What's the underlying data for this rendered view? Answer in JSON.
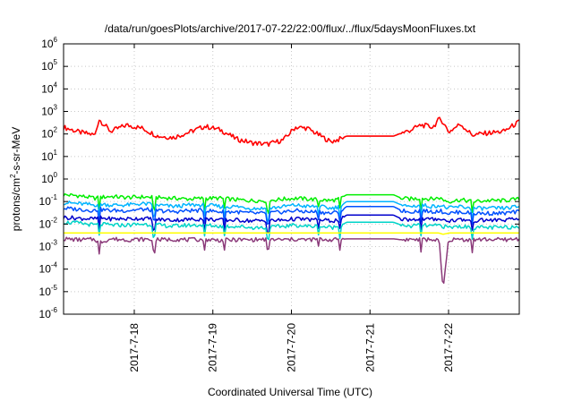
{
  "chart_data": {
    "type": "line",
    "title": "/data/run/goesPlots/archive/2017-07-22/22:00/flux/../flux/5daysMoonFluxes.txt",
    "xlabel": "Coordinated Universal Time (UTC)",
    "ylabel": {
      "prefix": "protons/cm",
      "sup": "2",
      "suffix": "-s-sr-MeV"
    },
    "yscale": "log",
    "ylim": [
      1e-06,
      1000000.0
    ],
    "xlim": [
      17.1,
      22.9
    ],
    "grid": true,
    "y_ticks": [
      {
        "value": 1e-06,
        "base": "10",
        "exp": "-6"
      },
      {
        "value": 1e-05,
        "base": "10",
        "exp": "-5"
      },
      {
        "value": 0.0001,
        "base": "10",
        "exp": "-4"
      },
      {
        "value": 0.001,
        "base": "10",
        "exp": "-3"
      },
      {
        "value": 0.01,
        "base": "10",
        "exp": "-2"
      },
      {
        "value": 0.1,
        "base": "10",
        "exp": "-1"
      },
      {
        "value": 1,
        "base": "10",
        "exp": "0"
      },
      {
        "value": 10,
        "base": "10",
        "exp": "1"
      },
      {
        "value": 100,
        "base": "10",
        "exp": "2"
      },
      {
        "value": 1000,
        "base": "10",
        "exp": "3"
      },
      {
        "value": 10000,
        "base": "10",
        "exp": "4"
      },
      {
        "value": 100000,
        "base": "10",
        "exp": "5"
      },
      {
        "value": 1000000,
        "base": "10",
        "exp": "6"
      }
    ],
    "x_ticks": [
      {
        "value": 18,
        "label": "2017-7-18"
      },
      {
        "value": 19,
        "label": "2017-7-19"
      },
      {
        "value": 20,
        "label": "2017-7-20"
      },
      {
        "value": 21,
        "label": "2017-7-21"
      },
      {
        "value": 22,
        "label": "2017-7-22"
      }
    ],
    "x": [
      17.1,
      17.3,
      17.5,
      17.55,
      17.7,
      17.9,
      18.1,
      18.3,
      18.5,
      18.7,
      18.9,
      19.1,
      19.3,
      19.5,
      19.7,
      19.9,
      20.05,
      20.2,
      20.35,
      20.5,
      20.62,
      20.7,
      20.9,
      21.1,
      21.3,
      21.4,
      21.5,
      21.65,
      21.8,
      21.88,
      21.93,
      22.0,
      22.15,
      22.3,
      22.5,
      22.7,
      22.9
    ],
    "series": [
      {
        "color": "#ff0000",
        "values": [
          200,
          120,
          90,
          450,
          130,
          250,
          180,
          80,
          70,
          120,
          220,
          150,
          60,
          40,
          35,
          55,
          200,
          180,
          90,
          45,
          60,
          80,
          80,
          80,
          80,
          110,
          140,
          250,
          200,
          450,
          350,
          120,
          280,
          90,
          110,
          130,
          350
        ]
      },
      {
        "color": "#00ee00",
        "values": [
          0.2,
          0.18,
          0.14,
          0.15,
          0.17,
          0.15,
          0.16,
          0.15,
          0.14,
          0.13,
          0.14,
          0.14,
          0.12,
          0.11,
          0.11,
          0.13,
          0.14,
          0.13,
          0.12,
          0.11,
          0.13,
          0.2,
          0.2,
          0.2,
          0.2,
          0.14,
          0.13,
          0.14,
          0.13,
          0.15,
          0.12,
          0.1,
          0.12,
          0.1,
          0.11,
          0.11,
          0.13
        ]
      },
      {
        "color": "#00b4ff",
        "values": [
          0.09,
          0.08,
          0.07,
          0.08,
          0.07,
          0.07,
          0.08,
          0.07,
          0.06,
          0.07,
          0.07,
          0.06,
          0.06,
          0.05,
          0.05,
          0.06,
          0.07,
          0.06,
          0.06,
          0.05,
          0.06,
          0.1,
          0.1,
          0.1,
          0.1,
          0.07,
          0.06,
          0.07,
          0.06,
          0.07,
          0.06,
          0.05,
          0.06,
          0.05,
          0.05,
          0.05,
          0.06
        ]
      },
      {
        "color": "#0050ff",
        "values": [
          0.05,
          0.045,
          0.04,
          0.045,
          0.04,
          0.04,
          0.045,
          0.04,
          0.035,
          0.04,
          0.04,
          0.035,
          0.035,
          0.03,
          0.03,
          0.035,
          0.04,
          0.035,
          0.035,
          0.03,
          0.035,
          0.06,
          0.06,
          0.06,
          0.06,
          0.04,
          0.035,
          0.04,
          0.035,
          0.04,
          0.035,
          0.03,
          0.035,
          0.03,
          0.03,
          0.03,
          0.035
        ]
      },
      {
        "color": "#0000cc",
        "values": [
          0.02,
          0.018,
          0.017,
          0.019,
          0.017,
          0.017,
          0.018,
          0.016,
          0.015,
          0.016,
          0.017,
          0.015,
          0.015,
          0.014,
          0.014,
          0.015,
          0.017,
          0.016,
          0.015,
          0.014,
          0.015,
          0.025,
          0.025,
          0.025,
          0.025,
          0.017,
          0.016,
          0.017,
          0.016,
          0.018,
          0.015,
          0.014,
          0.016,
          0.014,
          0.015,
          0.015,
          0.017
        ]
      },
      {
        "color": "#00d4c8",
        "values": [
          0.012,
          0.011,
          0.009,
          0.01,
          0.009,
          0.009,
          0.01,
          0.009,
          0.008,
          0.009,
          0.009,
          0.008,
          0.008,
          0.007,
          0.007,
          0.008,
          0.009,
          0.008,
          0.008,
          0.007,
          0.008,
          0.012,
          0.012,
          0.012,
          0.012,
          0.009,
          0.008,
          0.009,
          0.008,
          0.009,
          0.008,
          0.007,
          0.008,
          0.007,
          0.007,
          0.007,
          0.008
        ]
      },
      {
        "color": "#ffff00",
        "values": [
          0.004,
          0.004,
          0.004,
          0.004,
          0.004,
          0.004,
          0.004,
          0.004,
          0.004,
          0.004,
          0.004,
          0.004,
          0.004,
          0.004,
          0.004,
          0.004,
          0.004,
          0.004,
          0.004,
          0.004,
          0.004,
          0.004,
          0.004,
          0.004,
          0.004,
          0.004,
          0.004,
          0.004,
          0.004,
          0.004,
          0.0035,
          0.004,
          0.004,
          0.004,
          0.004,
          0.004,
          0.004
        ]
      },
      {
        "color": "#8b3a7a",
        "values": [
          0.0022,
          0.002,
          0.0021,
          0.0015,
          0.0022,
          0.002,
          0.0021,
          0.002,
          0.0021,
          0.002,
          0.0021,
          0.0019,
          0.002,
          0.002,
          0.0021,
          0.002,
          0.0021,
          0.002,
          0.0021,
          0.002,
          0.0021,
          0.0022,
          0.0022,
          0.0022,
          0.0022,
          0.002,
          0.0021,
          0.002,
          0.0021,
          0.0018,
          1.2e-05,
          0.002,
          0.0021,
          0.002,
          0.0021,
          0.002,
          0.0022
        ]
      }
    ],
    "spikes": [
      {
        "x": 17.55,
        "factor": 0.55
      },
      {
        "x": 18.25,
        "factor": 0.5
      },
      {
        "x": 18.9,
        "factor": 0.55
      },
      {
        "x": 19.15,
        "factor": 0.45
      },
      {
        "x": 19.7,
        "factor": 0.5
      },
      {
        "x": 20.35,
        "factor": 0.3
      },
      {
        "x": 20.62,
        "factor": 0.45
      },
      {
        "x": 21.65,
        "factor": 0.5
      },
      {
        "x": 22.3,
        "factor": 0.5
      }
    ]
  }
}
